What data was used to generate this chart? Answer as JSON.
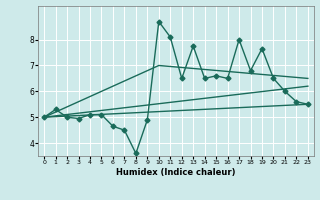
{
  "xlabel": "Humidex (Indice chaleur)",
  "xlim": [
    -0.5,
    23.5
  ],
  "ylim": [
    3.5,
    9.3
  ],
  "yticks": [
    4,
    5,
    6,
    7,
    8
  ],
  "xticks": [
    0,
    1,
    2,
    3,
    4,
    5,
    6,
    7,
    8,
    9,
    10,
    11,
    12,
    13,
    14,
    15,
    16,
    17,
    18,
    19,
    20,
    21,
    22,
    23
  ],
  "bg_color": "#ceeaea",
  "grid_color": "#ffffff",
  "line_color": "#1a6b5a",
  "line_width": 1.0,
  "marker": "D",
  "marker_size": 2.5,
  "series": [
    [
      0,
      5.0
    ],
    [
      1,
      5.3
    ],
    [
      2,
      5.0
    ],
    [
      3,
      4.95
    ],
    [
      4,
      5.1
    ],
    [
      5,
      5.1
    ],
    [
      6,
      4.65
    ],
    [
      7,
      4.5
    ],
    [
      8,
      3.6
    ],
    [
      9,
      4.9
    ],
    [
      10,
      8.7
    ],
    [
      11,
      8.1
    ],
    [
      12,
      6.5
    ],
    [
      13,
      7.75
    ],
    [
      14,
      6.5
    ],
    [
      15,
      6.6
    ],
    [
      16,
      6.5
    ],
    [
      17,
      8.0
    ],
    [
      18,
      6.8
    ],
    [
      19,
      7.65
    ],
    [
      20,
      6.5
    ],
    [
      21,
      6.0
    ],
    [
      22,
      5.6
    ],
    [
      23,
      5.5
    ]
  ],
  "trend_lines": [
    [
      [
        0,
        5.0
      ],
      [
        23,
        5.5
      ]
    ],
    [
      [
        0,
        5.0
      ],
      [
        23,
        6.2
      ]
    ],
    [
      [
        0,
        5.0
      ],
      [
        10,
        7.0
      ],
      [
        23,
        6.5
      ]
    ]
  ]
}
